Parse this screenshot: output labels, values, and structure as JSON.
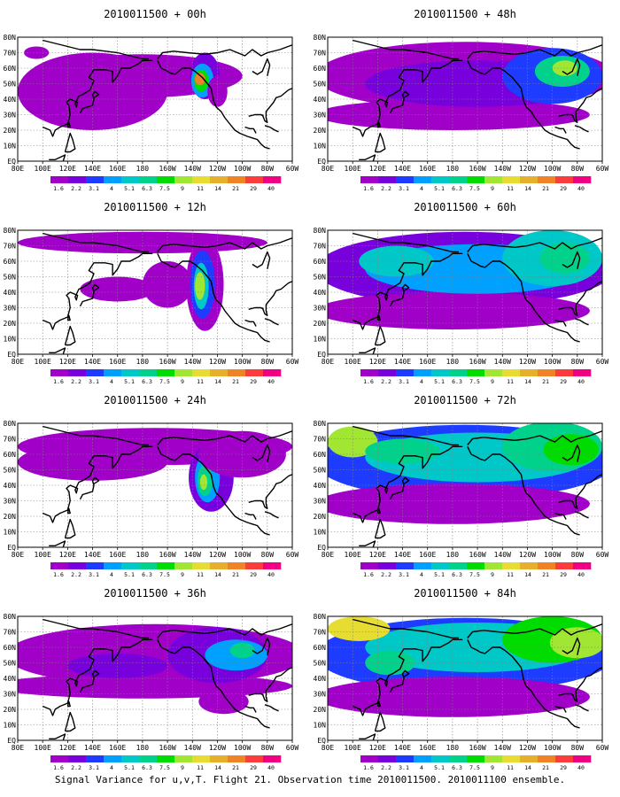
{
  "chart_data": {
    "type": "heatmap",
    "figure_caption": "Signal Variance for u,v,T. Flight 21. Observation time 2010011500. 2010011100 ensemble.",
    "panels": [
      {
        "title": "2010011500 + 00h",
        "lead_hours": 0
      },
      {
        "title": "2010011500 + 12h",
        "lead_hours": 12
      },
      {
        "title": "2010011500 + 24h",
        "lead_hours": 24
      },
      {
        "title": "2010011500 + 36h",
        "lead_hours": 36
      },
      {
        "title": "2010011500 + 48h",
        "lead_hours": 48
      },
      {
        "title": "2010011500 + 60h",
        "lead_hours": 60
      },
      {
        "title": "2010011500 + 72h",
        "lead_hours": 72
      },
      {
        "title": "2010011500 + 84h",
        "lead_hours": 84
      }
    ],
    "x_ticks": [
      "80E",
      "100E",
      "120E",
      "140E",
      "160E",
      "180",
      "160W",
      "140W",
      "120W",
      "100W",
      "80W",
      "60W"
    ],
    "y_ticks": [
      "EQ",
      "10N",
      "20N",
      "30N",
      "40N",
      "50N",
      "60N",
      "70N",
      "80N"
    ],
    "xlim": [
      "80E",
      "60W"
    ],
    "ylim": [
      "EQ",
      "80N"
    ],
    "colorbar": {
      "levels": [
        "1.6",
        "2.2",
        "3.1",
        "4",
        "5.1",
        "6.3",
        "7.5",
        "9",
        "11",
        "14",
        "21",
        "29",
        "40"
      ],
      "colors": [
        "#a000c8",
        "#7800dc",
        "#1e3cff",
        "#00a0ff",
        "#00c8c8",
        "#00d28c",
        "#00dc00",
        "#a0e632",
        "#e6dc32",
        "#e6af2d",
        "#f08228",
        "#fa3c3c",
        "#f00082"
      ]
    },
    "grid": true
  }
}
